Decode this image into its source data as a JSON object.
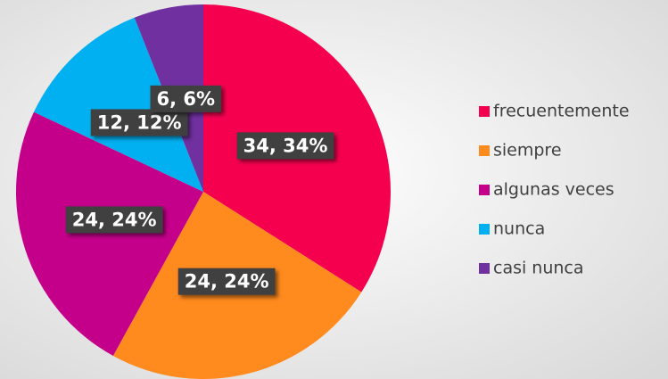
{
  "chart_data": {
    "type": "pie",
    "categories": [
      "frecuentemente",
      "siempre",
      "algunas veces",
      "nunca",
      "casi nunca"
    ],
    "values": [
      34,
      24,
      24,
      12,
      6
    ],
    "value_labels": [
      "34, 34%",
      "24, 24%",
      "24, 24%",
      "12, 12%",
      "6, 6%"
    ],
    "colors": [
      "#f5004f",
      "#ff8a1e",
      "#c4008a",
      "#00b0f0",
      "#7030a0"
    ],
    "legend": "right"
  }
}
